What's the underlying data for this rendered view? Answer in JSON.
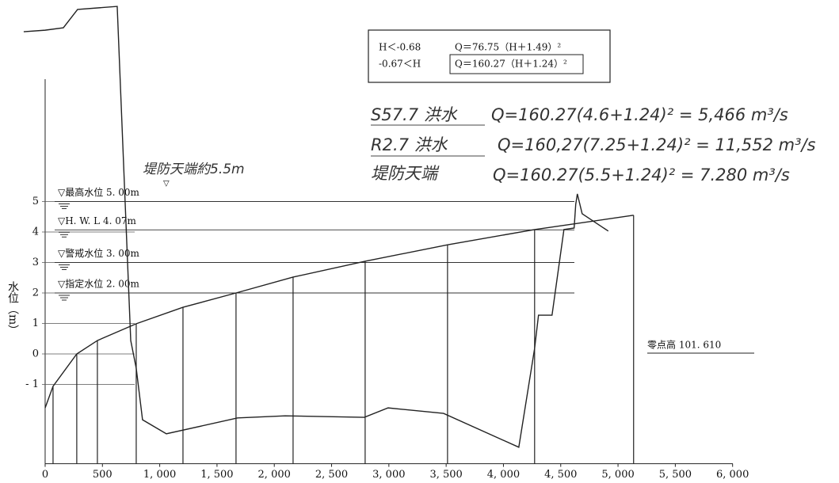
{
  "chart_data": {
    "type": "line",
    "y_label": "水位（m）",
    "xlim": [
      -190,
      6500
    ],
    "ylim": [
      -3.6,
      11.6
    ],
    "xticks": [
      0,
      500,
      {
        "value": 1000,
        "label": "1, 000"
      },
      {
        "value": 1500,
        "label": "1, 500"
      },
      {
        "value": 2000,
        "label": "2, 000"
      },
      {
        "value": 2500,
        "label": "2, 500"
      },
      {
        "value": 3000,
        "label": "3, 000"
      },
      {
        "value": 3500,
        "label": "3, 500"
      },
      {
        "value": 4000,
        "label": "4, 000"
      },
      {
        "value": 4500,
        "label": "4, 500"
      },
      {
        "value": 5000,
        "label": "5, 000"
      },
      {
        "value": 5500,
        "label": "5, 500"
      },
      {
        "value": 6000,
        "label": "6, 000"
      }
    ],
    "yticks": [
      {
        "value": -1,
        "label": "- 1"
      },
      0,
      1,
      2,
      3,
      4,
      5
    ],
    "series": [
      {
        "color": "#222",
        "x": [
          0,
          69,
          276,
          456,
          795,
          1203,
          1666,
          2164,
          2793,
          3512,
          4272,
          5136
        ],
        "values": [
          -1.77,
          -1.06,
          0,
          0.44,
          0.99,
          1.53,
          2.0,
          2.52,
          3.04,
          3.58,
          4.08,
          4.55
        ]
      },
      {
        "color": "#222",
        "x": [
          -187,
          0,
          159,
          283,
          629,
          747,
          795,
          850,
          1058,
          1680,
          2094,
          2786,
          2993,
          3477,
          4134,
          4272,
          4306,
          4424,
          4528,
          4617,
          4631,
          4645,
          4687,
          4915
        ],
        "values": [
          10.57,
          10.62,
          10.7,
          11.3,
          11.4,
          0.44,
          -0.47,
          -2.16,
          -2.62,
          -2.1,
          -2.03,
          -2.08,
          -1.77,
          -1.95,
          -3.06,
          0.18,
          1.27,
          1.27,
          4.08,
          4.13,
          4.91,
          5.25,
          4.6,
          4.03
        ]
      }
    ],
    "water_levels": [
      {
        "label": "▽最高水位 5. 00m",
        "value": 5
      },
      {
        "label": "▽H. W. L 4. 07m",
        "value": 4.07
      },
      {
        "label": "▽警戒水位 3. 00m",
        "value": 3
      },
      {
        "label": "▽指定水位 2. 00m",
        "value": 2
      }
    ],
    "formulas": [
      {
        "range": "H＜-0.68",
        "equation": "Q＝76.75（H＋1.49）²"
      },
      {
        "range": "-0.67＜H",
        "equation": "Q＝160.27（H＋1.24）²"
      }
    ],
    "handwritten": [
      {
        "event": "S57.7 洪水",
        "calc": "Q=160.27(4.6+1.24)² = 5,466 m³/s"
      },
      {
        "event": "R2.7 洪水",
        "calc": "Q=160,27(7.25+1.24)² = 11,552 m³/s"
      },
      {
        "event": "堤防天端",
        "calc": "Q=160.27(5.5+1.24)² = 7.280 m³/s"
      }
    ],
    "dike_note": "堤防天端約5.5m",
    "zero_point": "零点高 101. 610"
  }
}
